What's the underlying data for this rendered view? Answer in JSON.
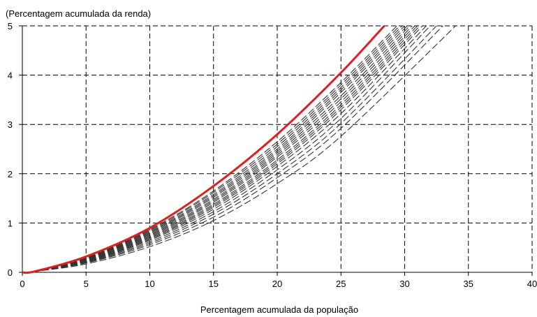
{
  "chart_data": {
    "type": "line",
    "ylabel": "(Percentagem acumulada da renda)",
    "xlabel": "Percentagem acumulada da população",
    "xlim": [
      0,
      40
    ],
    "ylim": [
      0,
      5
    ],
    "x_ticks": [
      0,
      5,
      10,
      15,
      20,
      25,
      30,
      35,
      40
    ],
    "y_ticks": [
      0,
      1,
      2,
      3,
      4,
      5
    ],
    "grid": true,
    "grid_style": "dashed",
    "highlight_color": "#e41e1e",
    "background_color": "#dcdcdc",
    "series": [
      {
        "x": [
          0,
          1,
          5,
          10,
          15,
          20,
          25,
          28.4
        ],
        "y": [
          0,
          0.02,
          0.32,
          0.9,
          1.75,
          2.8,
          4.05,
          5.0
        ],
        "color": "#e41e1e",
        "highlight": true
      },
      {
        "x": [
          0,
          1,
          5,
          10,
          15,
          20,
          25,
          29.4
        ],
        "y": [
          0,
          0.02,
          0.31,
          0.87,
          1.65,
          2.65,
          3.85,
          5.0
        ],
        "color": "#333333"
      },
      {
        "x": [
          0,
          1,
          5,
          10,
          15,
          20,
          25,
          29.6
        ],
        "y": [
          0,
          0.02,
          0.3,
          0.85,
          1.62,
          2.6,
          3.8,
          5.0
        ],
        "color": "#333333"
      },
      {
        "x": [
          0,
          1,
          5,
          10,
          15,
          20,
          25,
          29.8
        ],
        "y": [
          0,
          0.02,
          0.3,
          0.83,
          1.58,
          2.55,
          3.75,
          5.0
        ],
        "color": "#333333"
      },
      {
        "x": [
          0,
          1,
          5,
          10,
          15,
          20,
          25,
          30.0
        ],
        "y": [
          0,
          0.02,
          0.29,
          0.81,
          1.55,
          2.5,
          3.7,
          5.0
        ],
        "color": "#333333"
      },
      {
        "x": [
          0,
          1,
          5,
          10,
          15,
          20,
          25,
          30.2
        ],
        "y": [
          0,
          0.02,
          0.28,
          0.79,
          1.52,
          2.46,
          3.65,
          5.0
        ],
        "color": "#333333"
      },
      {
        "x": [
          0,
          1,
          5,
          10,
          15,
          20,
          25,
          30.4
        ],
        "y": [
          0,
          0.02,
          0.28,
          0.77,
          1.48,
          2.42,
          3.58,
          5.0
        ],
        "color": "#333333"
      },
      {
        "x": [
          0,
          1,
          5,
          10,
          15,
          20,
          25,
          30.6
        ],
        "y": [
          0,
          0.02,
          0.27,
          0.75,
          1.45,
          2.38,
          3.52,
          5.0
        ],
        "color": "#333333"
      },
      {
        "x": [
          0,
          1,
          5,
          10,
          15,
          20,
          25,
          30.8
        ],
        "y": [
          0,
          0.02,
          0.26,
          0.73,
          1.42,
          2.34,
          3.46,
          5.0
        ],
        "color": "#333333"
      },
      {
        "x": [
          0,
          1,
          5,
          10,
          15,
          20,
          25,
          31.0
        ],
        "y": [
          0,
          0.02,
          0.25,
          0.71,
          1.38,
          2.28,
          3.4,
          5.0
        ],
        "color": "#333333"
      },
      {
        "x": [
          0,
          1,
          5,
          10,
          15,
          20,
          25,
          31.2
        ],
        "y": [
          0,
          0.02,
          0.24,
          0.69,
          1.35,
          2.24,
          3.35,
          5.0
        ],
        "color": "#333333"
      },
      {
        "x": [
          0,
          1,
          5,
          10,
          15,
          20,
          25,
          31.4
        ],
        "y": [
          0,
          0.02,
          0.23,
          0.67,
          1.32,
          2.2,
          3.3,
          5.0
        ],
        "color": "#333333"
      },
      {
        "x": [
          0,
          1,
          5,
          10,
          15,
          20,
          25,
          31.7
        ],
        "y": [
          0,
          0.02,
          0.22,
          0.65,
          1.28,
          2.15,
          3.22,
          5.0
        ],
        "color": "#333333"
      },
      {
        "x": [
          0,
          1,
          5,
          10,
          15,
          20,
          25,
          32.0
        ],
        "y": [
          0,
          0.02,
          0.21,
          0.62,
          1.23,
          2.08,
          3.12,
          5.0
        ],
        "color": "#333333"
      },
      {
        "x": [
          0,
          1,
          5,
          10,
          15,
          20,
          25,
          32.5
        ],
        "y": [
          0,
          0.02,
          0.2,
          0.59,
          1.18,
          2.0,
          3.02,
          5.0
        ],
        "color": "#333333"
      },
      {
        "x": [
          0,
          1,
          5,
          10,
          15,
          20,
          25,
          33.0
        ],
        "y": [
          0,
          0.02,
          0.19,
          0.56,
          1.12,
          1.92,
          2.92,
          5.0
        ],
        "color": "#333333"
      },
      {
        "x": [
          0,
          1,
          5,
          10,
          15,
          20,
          25,
          34.0
        ],
        "y": [
          0,
          0.02,
          0.17,
          0.52,
          1.05,
          1.8,
          2.76,
          5.0
        ],
        "color": "#333333"
      }
    ]
  }
}
